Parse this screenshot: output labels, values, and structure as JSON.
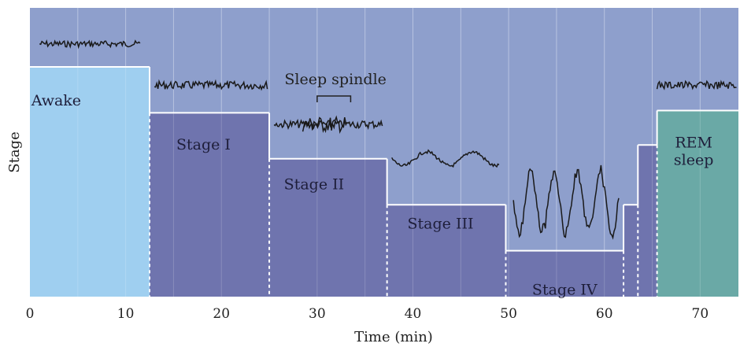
{
  "chart_data": {
    "type": "step-area",
    "xlabel": "Time (min)",
    "ylabel": "Stage",
    "xlim": [
      0,
      74
    ],
    "xticks": [
      0,
      10,
      20,
      30,
      40,
      50,
      60,
      70
    ],
    "stages": [
      {
        "label": "Awake",
        "start": 0,
        "end": 12.5,
        "level": 5,
        "color": "#9fcff0"
      },
      {
        "label": "Stage I",
        "start": 12.5,
        "end": 25,
        "level": 4,
        "color": "#6f74ae"
      },
      {
        "label": "Stage II",
        "start": 25,
        "end": 37.3,
        "level": 3,
        "color": "#6f74ae"
      },
      {
        "label": "Stage III",
        "start": 37.3,
        "end": 49.7,
        "level": 2,
        "color": "#6f74ae"
      },
      {
        "label": "Stage IV",
        "start": 49.7,
        "end": 62,
        "level": 1,
        "color": "#6f74ae"
      },
      {
        "label": "",
        "start": 62,
        "end": 63.5,
        "level": 2,
        "color": "#6f74ae"
      },
      {
        "label": "",
        "start": 63.5,
        "end": 65.5,
        "level": 3.3,
        "color": "#6f74ae"
      },
      {
        "label": "REM sleep",
        "start": 65.5,
        "end": 74,
        "level": 4.05,
        "color": "#6aa9a6"
      }
    ],
    "annotations": [
      {
        "text": "Sleep spindle",
        "x_from": 30,
        "x_to": 33.5
      }
    ],
    "colors": {
      "background": "#8e9fcc",
      "stage_fill": "#6f74ae",
      "awake_fill": "#9fcff0",
      "rem_fill": "#6aa9a6",
      "trace": "#1a1a1a"
    },
    "grid": true
  }
}
